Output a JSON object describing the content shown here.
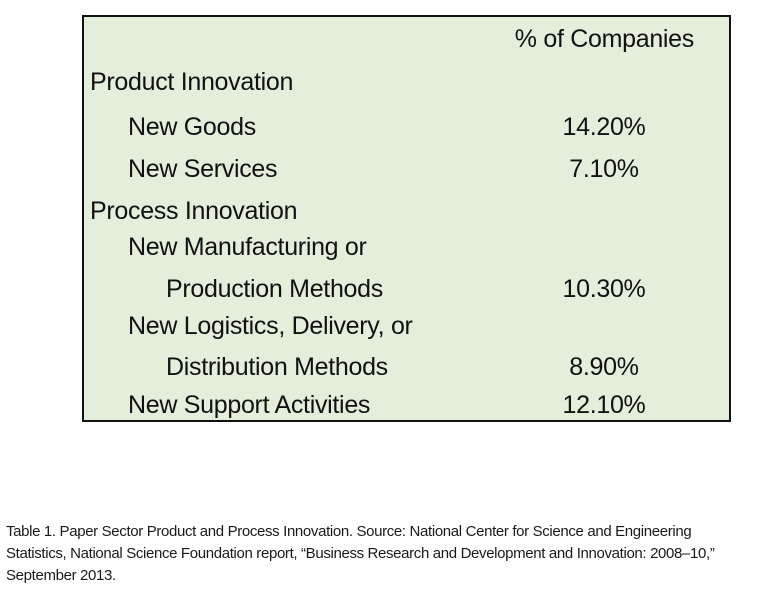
{
  "table": {
    "column_header": "% of Companies",
    "rows": [
      {
        "label": "Product Innovation",
        "value": "",
        "level": 0
      },
      {
        "label": "New Goods",
        "value": "14.20%",
        "level": 1
      },
      {
        "label": "New Services",
        "value": "7.10%",
        "level": 1
      },
      {
        "label": "Process Innovation",
        "value": "",
        "level": 0
      },
      {
        "label": "New Manufacturing or",
        "value": "",
        "level": 1
      },
      {
        "label": "Production Methods",
        "value": "10.30%",
        "level": 2
      },
      {
        "label": "New Logistics, Delivery, or",
        "value": "",
        "level": 1
      },
      {
        "label": "Distribution Methods",
        "value": "8.90%",
        "level": 2
      },
      {
        "label": "New Support Activities",
        "value": "12.10%",
        "level": 1
      }
    ]
  },
  "caption": "Table 1. Paper Sector Product and Process Innovation. Source: National Center for Science and Engineering Statistics, National Science Foundation report, “Business Research and Development and Innovation: 2008–10,” September 2013.",
  "colors": {
    "table_background": "#e3eedb",
    "border": "#111111",
    "text": "#111111"
  }
}
